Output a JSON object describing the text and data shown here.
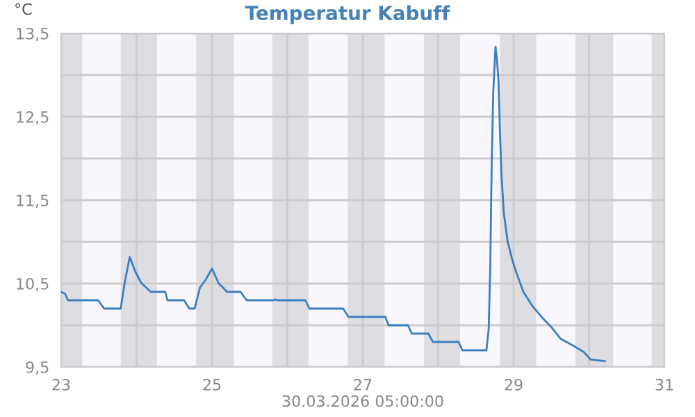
{
  "chart_data": {
    "type": "line",
    "title": "Temperatur Kabuff",
    "ylabel": "°C",
    "xlabel": "30.03.2026 05:00:00",
    "series": [
      {
        "color": "#3a7fc0",
        "x": [
          23.0,
          23.05,
          23.09,
          23.49,
          23.53,
          23.57,
          23.79,
          23.84,
          23.91,
          23.98,
          24.06,
          24.13,
          24.19,
          24.38,
          24.41,
          24.63,
          24.7,
          24.77,
          24.84,
          24.92,
          25.0,
          25.09,
          25.15,
          25.2,
          25.38,
          25.46,
          25.82,
          25.84,
          25.87,
          26.24,
          26.29,
          26.74,
          26.81,
          27.3,
          27.34,
          27.6,
          27.65,
          27.87,
          27.93,
          28.27,
          28.32,
          28.64,
          28.67,
          28.69,
          28.71,
          28.73,
          28.76,
          28.78,
          28.8,
          28.82,
          28.84,
          28.87,
          28.92,
          28.98,
          29.04,
          29.13,
          29.25,
          29.38,
          29.5,
          29.62,
          29.78,
          29.93,
          30.02,
          30.21
        ],
        "values": [
          10.4,
          10.38,
          10.3,
          10.3,
          10.25,
          10.2,
          10.2,
          10.5,
          10.82,
          10.65,
          10.51,
          10.45,
          10.4,
          10.4,
          10.3,
          10.3,
          10.2,
          10.2,
          10.45,
          10.55,
          10.68,
          10.5,
          10.45,
          10.4,
          10.4,
          10.3,
          10.3,
          10.31,
          10.3,
          10.3,
          10.2,
          10.2,
          10.1,
          10.1,
          10.0,
          10.0,
          9.9,
          9.9,
          9.8,
          9.8,
          9.7,
          9.7,
          9.96,
          10.68,
          11.96,
          12.79,
          13.34,
          13.18,
          12.93,
          12.29,
          11.79,
          11.35,
          11.01,
          10.79,
          10.62,
          10.4,
          10.23,
          10.09,
          9.98,
          9.84,
          9.76,
          9.68,
          9.59,
          9.57
        ]
      }
    ],
    "xlim": [
      23,
      31
    ],
    "xticks": [
      23,
      {
        "value": 24,
        "label": null
      },
      25,
      {
        "value": 26,
        "label": null
      },
      27,
      {
        "value": 28,
        "label": null
      },
      29,
      {
        "value": 30,
        "label": null
      },
      31
    ],
    "ylim": [
      9.5,
      13.5
    ],
    "yticks": [
      {
        "value": 9.5,
        "label": "9,5"
      },
      {
        "value": 10,
        "label": null
      },
      {
        "value": 10.5,
        "label": "10,5"
      },
      {
        "value": 11,
        "label": null
      },
      {
        "value": 11.5,
        "label": "11,5"
      },
      {
        "value": 12,
        "label": null
      },
      {
        "value": 12.5,
        "label": "12,5"
      },
      {
        "value": 13,
        "label": null
      },
      {
        "value": 13.5,
        "label": "13,5"
      }
    ],
    "grid": true,
    "bands": [
      {
        "axis": "x",
        "from": 23.0,
        "to": 23.28,
        "color": "#dedee2"
      },
      {
        "axis": "x",
        "from": 23.79,
        "to": 24.27,
        "color": "#dedee2"
      },
      {
        "axis": "x",
        "from": 24.79,
        "to": 25.29,
        "color": "#dedee2"
      },
      {
        "axis": "x",
        "from": 25.8,
        "to": 26.28,
        "color": "#dedee2"
      },
      {
        "axis": "x",
        "from": 26.8,
        "to": 27.29,
        "color": "#dedee2"
      },
      {
        "axis": "x",
        "from": 27.81,
        "to": 28.29,
        "color": "#dedee2"
      },
      {
        "axis": "x",
        "from": 28.82,
        "to": 29.3,
        "color": "#dedee2"
      },
      {
        "axis": "x",
        "from": 29.82,
        "to": 30.32,
        "color": "#dedee2"
      },
      {
        "axis": "x",
        "from": 30.83,
        "to": 31.0,
        "color": "#dedee2"
      }
    ]
  }
}
